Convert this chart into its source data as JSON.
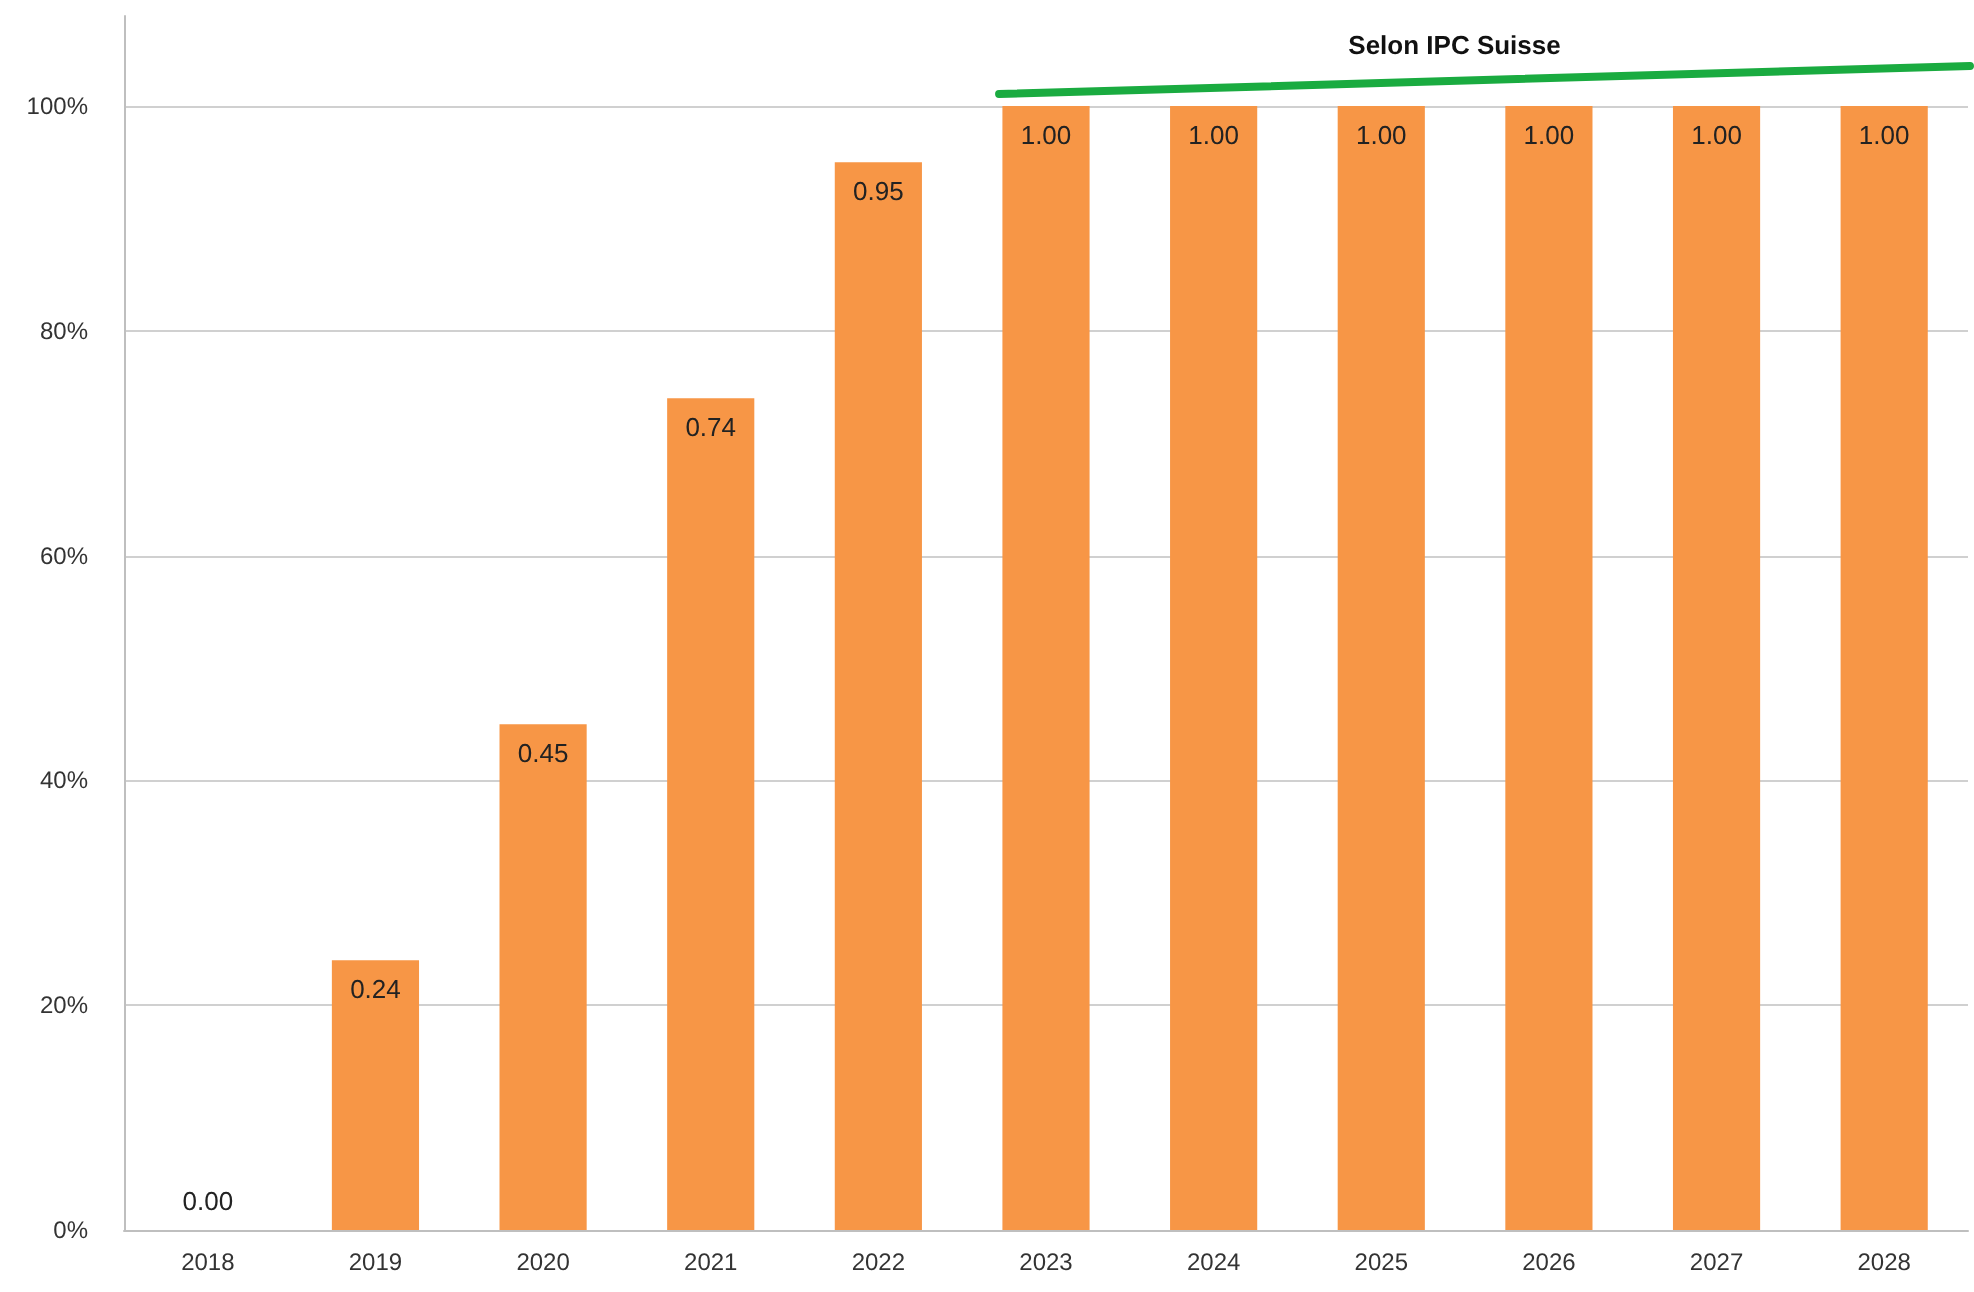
{
  "chart_data": {
    "type": "bar",
    "categories": [
      "2018",
      "2019",
      "2020",
      "2021",
      "2022",
      "2023",
      "2024",
      "2025",
      "2026",
      "2027",
      "2028"
    ],
    "values": [
      0,
      0.24,
      0.45,
      0.74,
      0.95,
      1,
      1,
      1,
      1,
      1,
      1
    ],
    "value_labels": [
      "0.00",
      "0.24",
      "0.45",
      "0.74",
      "0.95",
      "1.00",
      "1.00",
      "1.00",
      "1.00",
      "1.00",
      "1.00"
    ],
    "color": "#f79646",
    "ylim": [
      0,
      1.08
    ],
    "yticks": [
      {
        "value": 0,
        "label": "0%"
      },
      {
        "value": 0.2,
        "label": "20%"
      },
      {
        "value": 0.4,
        "label": "40%"
      },
      {
        "value": 0.6,
        "label": "60%"
      },
      {
        "value": 0.8,
        "label": "80%"
      },
      {
        "value": 1,
        "label": "100%"
      }
    ],
    "grid": "y",
    "annotations": [
      "Selon IPC Suisse"
    ]
  }
}
